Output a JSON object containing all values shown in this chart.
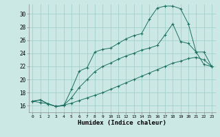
{
  "xlabel": "Humidex (Indice chaleur)",
  "background_color": "#cce8e4",
  "grid_color": "#99ccC8",
  "line_color": "#1a7060",
  "xlim": [
    -0.5,
    23.5
  ],
  "ylim": [
    15.0,
    31.5
  ],
  "xticks": [
    0,
    1,
    2,
    3,
    4,
    5,
    6,
    7,
    8,
    9,
    10,
    11,
    12,
    13,
    14,
    15,
    16,
    17,
    18,
    19,
    20,
    21,
    22,
    23
  ],
  "yticks": [
    16,
    18,
    20,
    22,
    24,
    26,
    28,
    30
  ],
  "line1_x": [
    0,
    1,
    2,
    3,
    4,
    5,
    6,
    7,
    8,
    9,
    10,
    11,
    12,
    13,
    14,
    15,
    16,
    17,
    18,
    19,
    20,
    21,
    22,
    23
  ],
  "line1_y": [
    16.7,
    16.9,
    16.3,
    15.9,
    16.0,
    18.5,
    21.3,
    21.8,
    24.2,
    24.6,
    24.8,
    25.5,
    26.2,
    26.7,
    27.0,
    29.2,
    30.9,
    31.2,
    31.2,
    30.8,
    28.5,
    24.2,
    24.2,
    22.0
  ],
  "line2_x": [
    0,
    1,
    2,
    3,
    4,
    5,
    6,
    7,
    8,
    9,
    10,
    11,
    12,
    13,
    14,
    15,
    16,
    17,
    18,
    19,
    20,
    21,
    22,
    23
  ],
  "line2_y": [
    16.7,
    16.9,
    16.3,
    15.9,
    16.1,
    17.2,
    18.8,
    20.0,
    21.2,
    22.0,
    22.5,
    23.1,
    23.6,
    24.0,
    24.5,
    24.8,
    25.2,
    26.8,
    28.5,
    25.8,
    25.5,
    24.2,
    22.3,
    22.0
  ],
  "line3_x": [
    0,
    1,
    2,
    3,
    4,
    5,
    6,
    7,
    8,
    9,
    10,
    11,
    12,
    13,
    14,
    15,
    16,
    17,
    18,
    19,
    20,
    21,
    22,
    23
  ],
  "line3_y": [
    16.7,
    16.5,
    16.3,
    15.9,
    16.1,
    16.4,
    16.8,
    17.2,
    17.6,
    18.0,
    18.5,
    19.0,
    19.5,
    20.0,
    20.5,
    21.0,
    21.5,
    22.0,
    22.5,
    22.8,
    23.2,
    23.4,
    23.0,
    22.0
  ]
}
